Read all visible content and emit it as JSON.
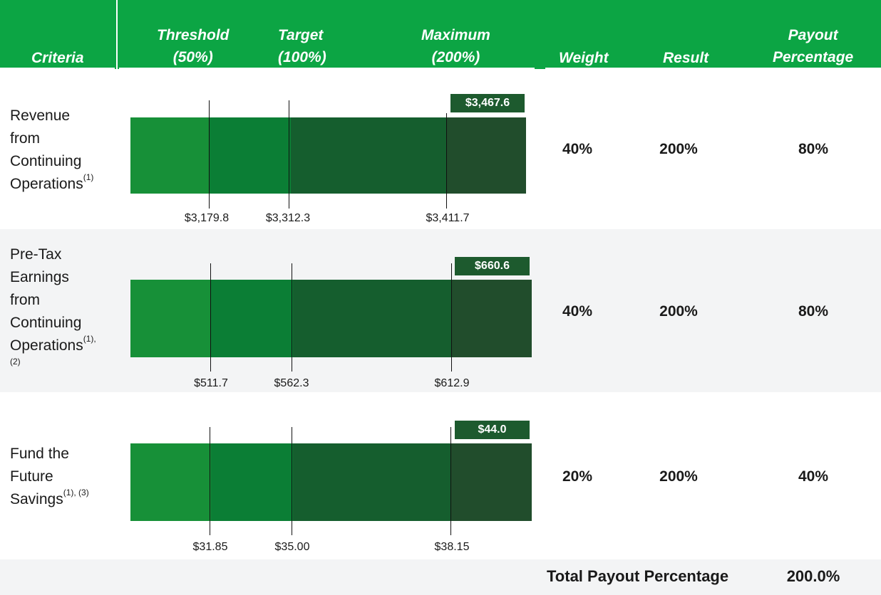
{
  "header": {
    "criteria": "Criteria",
    "threshold": "Threshold\n(50%)",
    "target": "Target\n(100%)",
    "maximum": "Maximum\n(200%)",
    "weight": "Weight",
    "result": "Result",
    "payout": "Payout\nPercentage"
  },
  "rows": [
    {
      "label": "Revenue\nfrom\nContinuing\nOperations",
      "footnote": "(1)",
      "threshold_label": "$3,179.8",
      "target_label": "$3,312.3",
      "maximum_label": "$3,411.7",
      "actual_label": "$3,467.6",
      "weight": "40%",
      "result": "200%",
      "payout": "80%"
    },
    {
      "label": "Pre-Tax\nEarnings\nfrom\nContinuing\nOperations",
      "footnote": "(1),\n(2)",
      "threshold_label": "$511.7",
      "target_label": "$562.3",
      "maximum_label": "$612.9",
      "actual_label": "$660.6",
      "weight": "40%",
      "result": "200%",
      "payout": "80%"
    },
    {
      "label": "Fund the\nFuture\nSavings",
      "footnote": "(1), (3)",
      "threshold_label": "$31.85",
      "target_label": "$35.00",
      "maximum_label": "$38.15",
      "actual_label": "$44.0",
      "weight": "20%",
      "result": "200%",
      "payout": "40%"
    }
  ],
  "total": {
    "label": "Total Payout Percentage",
    "value": "200.0%"
  },
  "chart_data": {
    "type": "bar",
    "categories": [
      "Revenue from Continuing Operations",
      "Pre-Tax Earnings from Continuing Operations",
      "Fund the Future Savings"
    ],
    "series": [
      {
        "name": "Threshold (50%)",
        "values": [
          3179.8,
          511.7,
          31.85
        ]
      },
      {
        "name": "Target (100%)",
        "values": [
          3312.3,
          562.3,
          35.0
        ]
      },
      {
        "name": "Maximum (200%)",
        "values": [
          3411.7,
          612.9,
          38.15
        ]
      },
      {
        "name": "Result",
        "values": [
          3467.6,
          660.6,
          44.0
        ]
      }
    ],
    "colors": [
      "#179038",
      "#0b7e35",
      "#155e2e",
      "#214d2c"
    ],
    "result_box_color": "#1d5a2e",
    "header_color": "#0ca544",
    "band_color": "#f3f4f5"
  }
}
